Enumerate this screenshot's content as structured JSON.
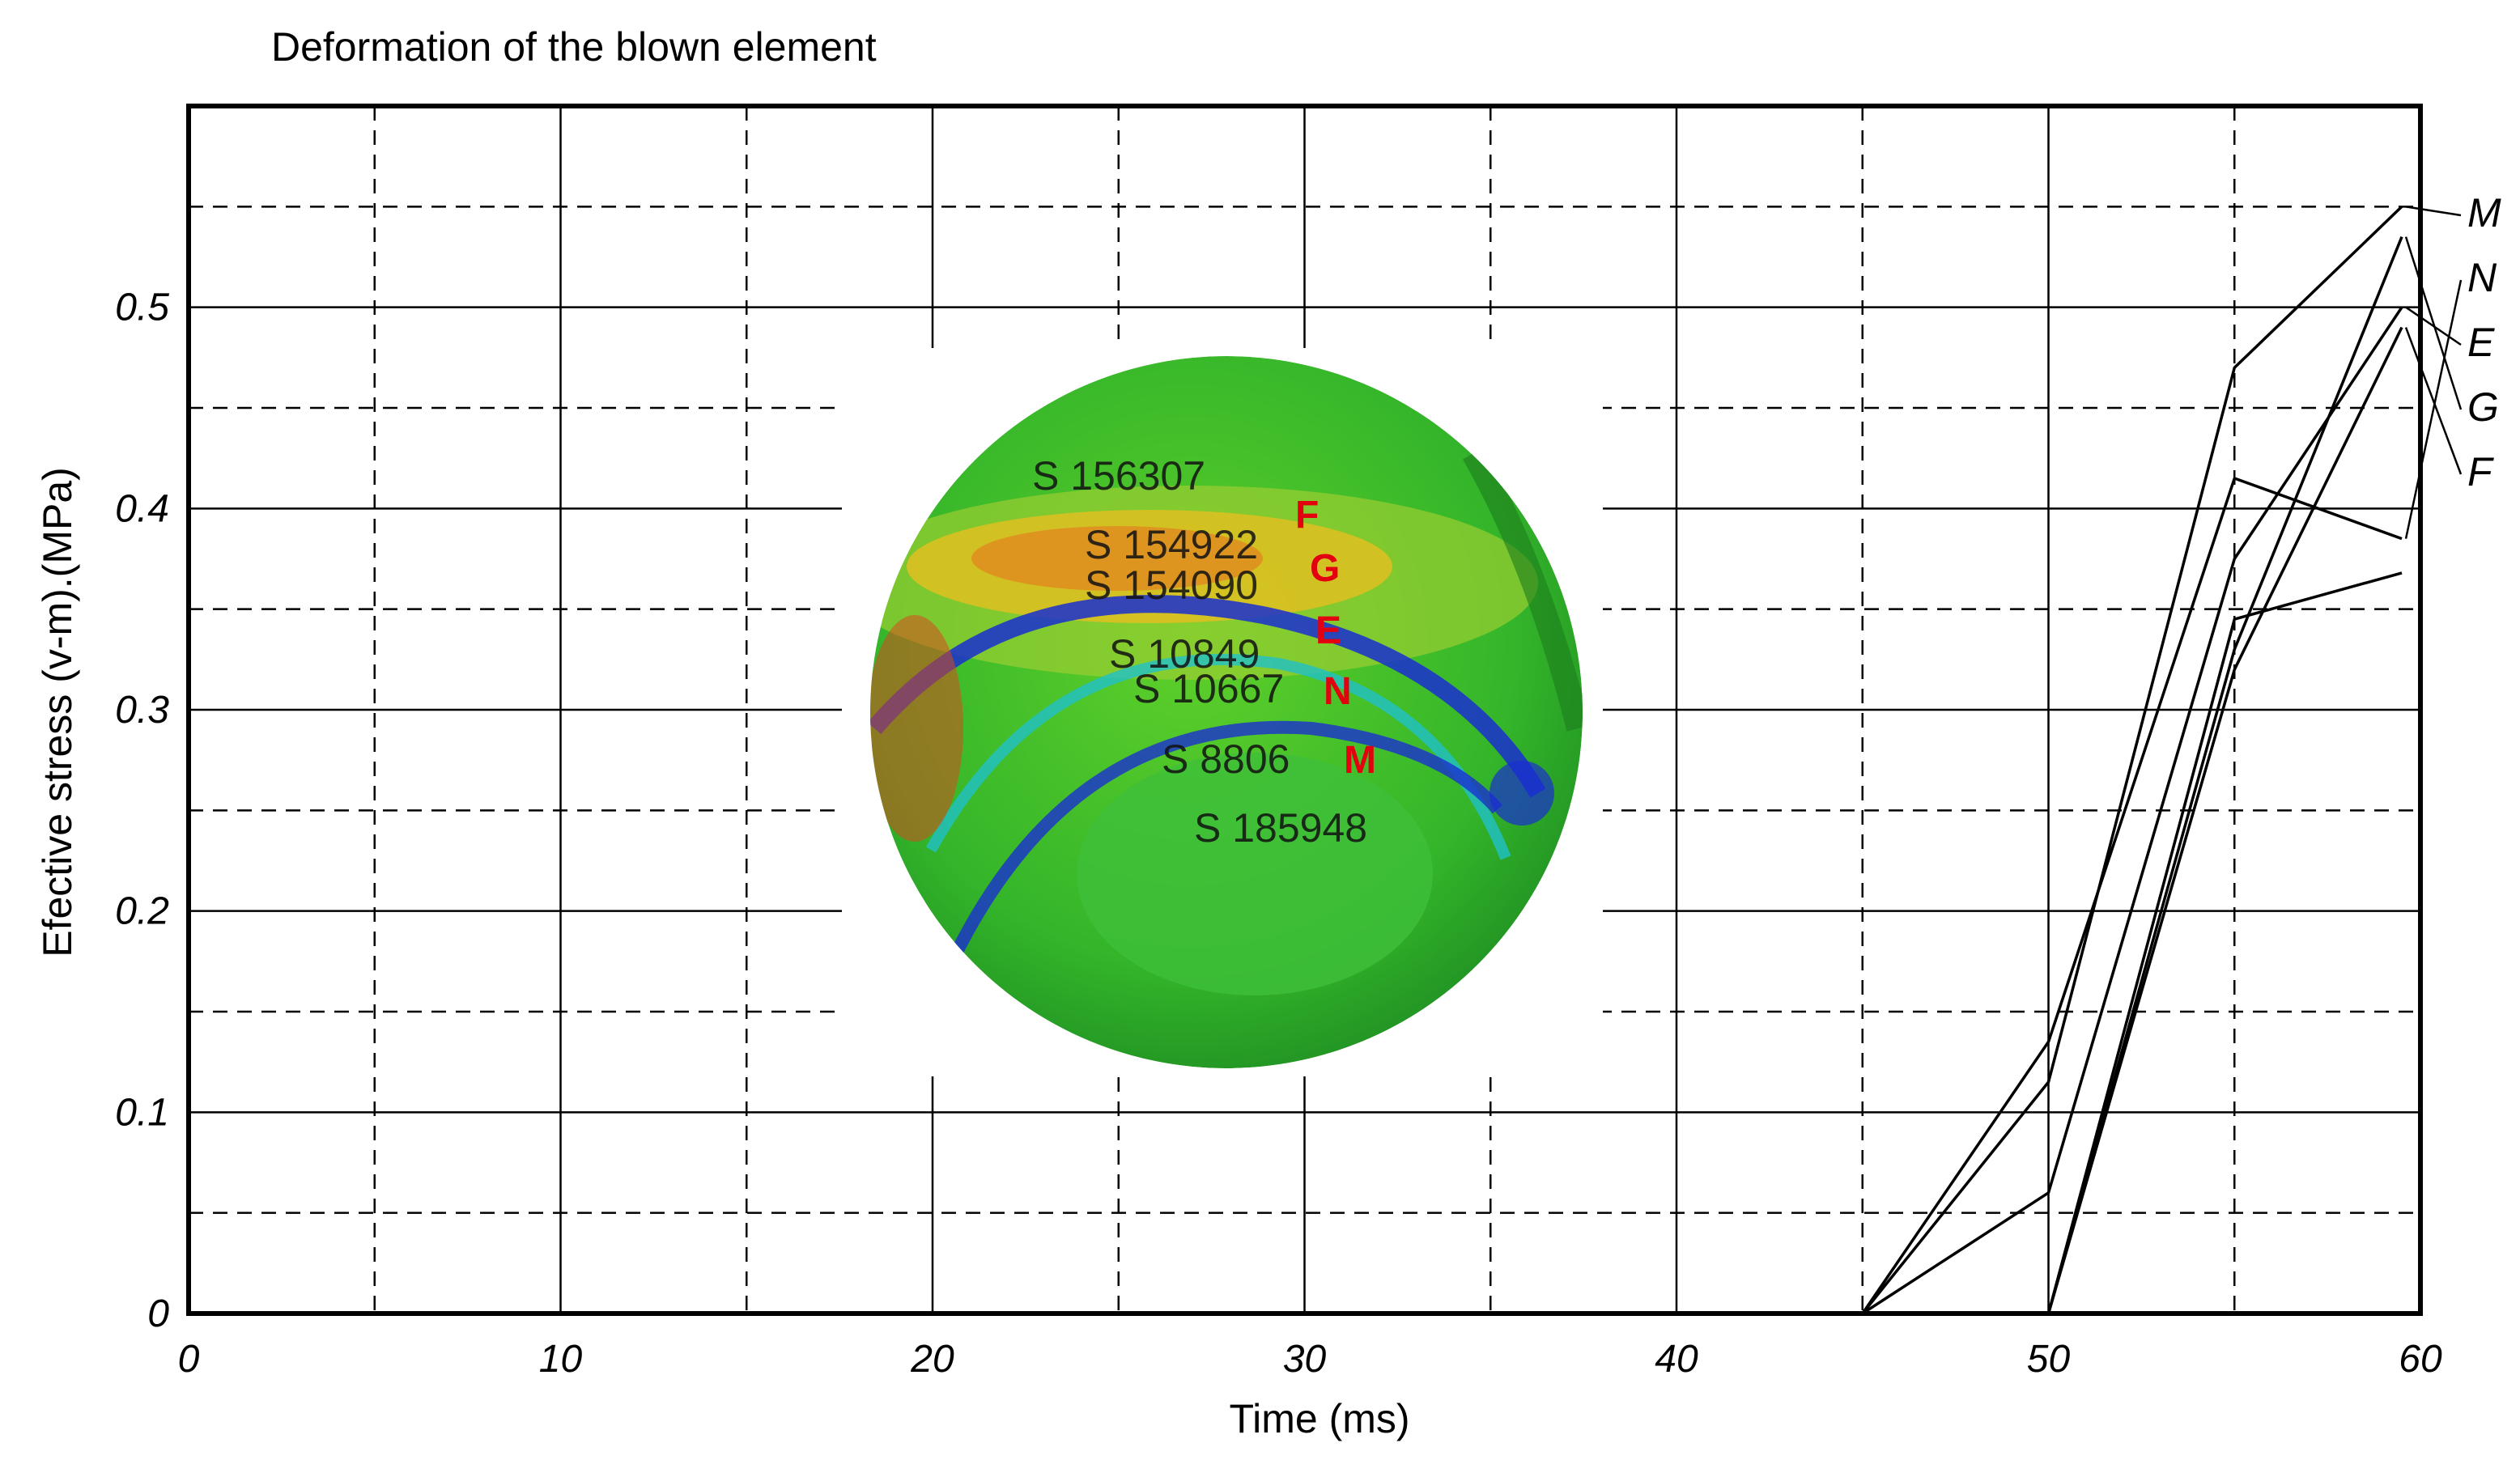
{
  "chart_data": {
    "type": "line",
    "title": "Deformation  of the blown element",
    "xlabel": "Time (ms)",
    "ylabel": "Efective  stress  (v-m).(MPa)",
    "xlim": [
      0,
      60
    ],
    "ylim": [
      0,
      0.6
    ],
    "x_ticks": [
      0,
      10,
      20,
      30,
      40,
      50,
      60
    ],
    "x_tick_labels": [
      "0",
      "10",
      "20",
      "30",
      "40",
      "50",
      "60"
    ],
    "y_ticks": [
      0,
      0.1,
      0.2,
      0.3,
      0.4,
      0.5
    ],
    "y_tick_labels": [
      "0",
      "0.1",
      "0.2",
      "0.3",
      "0.4",
      "0.5"
    ],
    "grid": true,
    "grid_minor_dashed": true,
    "series": [
      {
        "name": "M",
        "x": [
          45,
          50,
          55,
          59.5
        ],
        "y": [
          0,
          0.115,
          0.47,
          0.55
        ]
      },
      {
        "name": "N",
        "x": [
          45,
          50,
          55,
          59.5
        ],
        "y": [
          0,
          0.135,
          0.415,
          0.385
        ]
      },
      {
        "name": "E",
        "x": [
          45,
          50,
          55,
          59.5
        ],
        "y": [
          0,
          0.06,
          0.375,
          0.5
        ]
      },
      {
        "name": "G",
        "x": [
          50,
          55,
          59.5
        ],
        "y": [
          0,
          0.33,
          0.535
        ]
      },
      {
        "name": "F",
        "x": [
          50,
          55,
          59.5
        ],
        "y": [
          0,
          0.32,
          0.49
        ]
      },
      {
        "name": "",
        "x": [
          50,
          55,
          59.5
        ],
        "y": [
          0,
          0.345,
          0.368
        ]
      }
    ],
    "series_tags": [
      "M",
      "N",
      "E",
      "G",
      "F"
    ],
    "inset": {
      "point_labels": [
        "S 156307",
        "S 154922",
        "S 154090",
        "S 10849",
        "S 10667",
        "S 8806",
        "S 185948"
      ],
      "point_letters": [
        "F",
        "G",
        "E",
        "N",
        "M"
      ],
      "colors": {
        "green": "#2ca02c",
        "yellow": "#e0c020",
        "orange": "#e08a20",
        "blue": "#1a2fd0",
        "cyan": "#20c0c8"
      }
    }
  }
}
